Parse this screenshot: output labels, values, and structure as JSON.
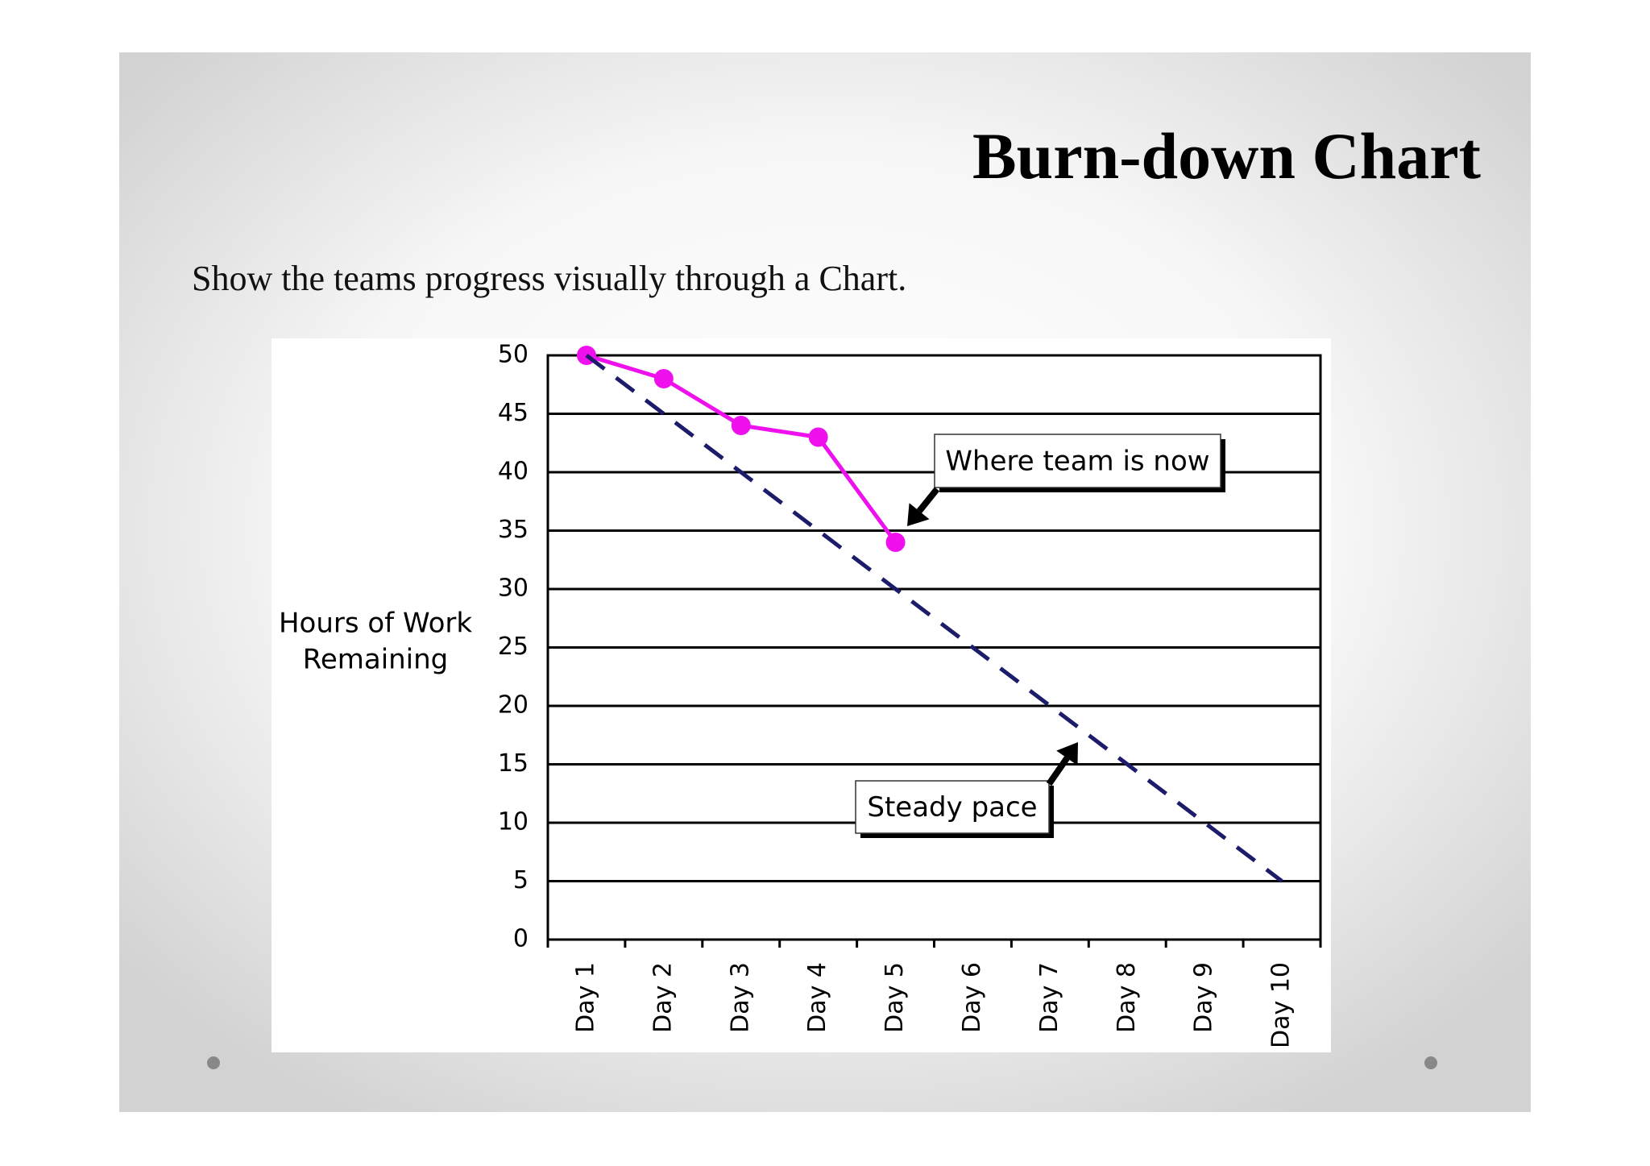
{
  "chart_data": {
    "type": "line",
    "title": "Burn-down Chart",
    "subtitle": "Show the teams progress visually through a Chart.",
    "ylabel": [
      "Hours of Work",
      "Remaining"
    ],
    "categories": [
      "Day 1",
      "Day 2",
      "Day 3",
      "Day 4",
      "Day 5",
      "Day 6",
      "Day 7",
      "Day 8",
      "Day 9",
      "Day 10"
    ],
    "series": [
      {
        "color": "#ee11ee",
        "style": "solid",
        "markers": true,
        "values": [
          50,
          48,
          44,
          43,
          34,
          null,
          null,
          null,
          null,
          null
        ]
      },
      {
        "color": "#1c1c6b",
        "style": "dashed",
        "markers": false,
        "values": [
          50,
          45,
          40,
          35,
          30,
          25,
          20,
          15,
          10,
          5
        ]
      }
    ],
    "ylim": [
      0,
      50
    ],
    "yticks": [
      0,
      5,
      10,
      15,
      20,
      25,
      30,
      35,
      40,
      45,
      50
    ],
    "grid": true,
    "annotations": [
      {
        "text": "Where team is now",
        "series": 0,
        "index": 4
      },
      {
        "text": "Steady pace",
        "series": 1,
        "index": 6
      }
    ]
  }
}
